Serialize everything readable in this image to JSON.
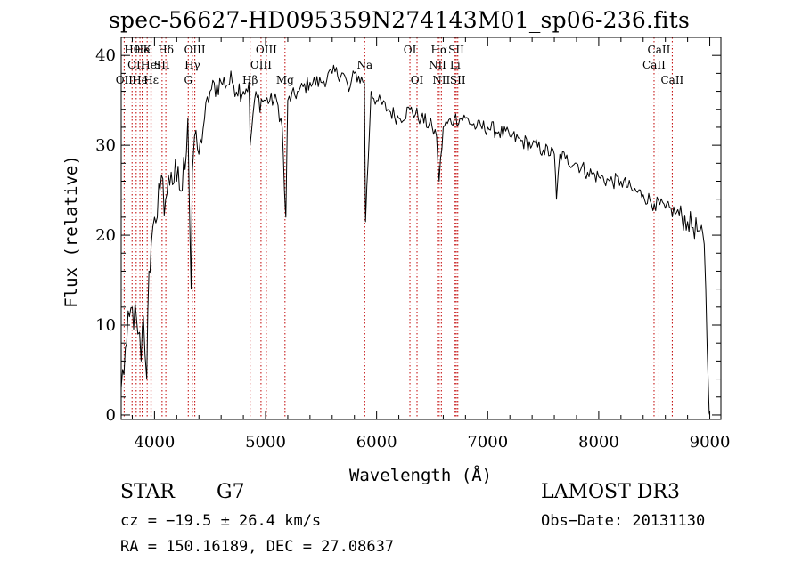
{
  "chart_data": {
    "type": "line",
    "title": "spec-56627-HD095359N274143M01_sp06-236.fits",
    "xlabel": "Wavelength (Å)",
    "ylabel": "Flux (relative)",
    "xlim": [
      3700,
      9100
    ],
    "ylim": [
      -0.5,
      42
    ],
    "xticks": [
      4000,
      5000,
      6000,
      7000,
      8000,
      9000
    ],
    "yticks": [
      0,
      10,
      20,
      30,
      40
    ],
    "series": [
      {
        "name": "flux",
        "x": [
          3700,
          3750,
          3800,
          3850,
          3880,
          3900,
          3930,
          3950,
          3970,
          4000,
          4050,
          4100,
          4150,
          4200,
          4250,
          4300,
          4330,
          4340,
          4360,
          4400,
          4450,
          4500,
          4600,
          4700,
          4800,
          4850,
          4861,
          4900,
          5000,
          5100,
          5150,
          5170,
          5183,
          5200,
          5300,
          5400,
          5500,
          5600,
          5700,
          5750,
          5800,
          5890,
          5900,
          5950,
          6000,
          6100,
          6200,
          6300,
          6400,
          6500,
          6540,
          6563,
          6600,
          6700,
          6800,
          6900,
          7000,
          7100,
          7200,
          7300,
          7400,
          7500,
          7600,
          7620,
          7650,
          7700,
          7800,
          7900,
          8000,
          8100,
          8200,
          8300,
          8400,
          8500,
          8600,
          8700,
          8800,
          8900,
          8950,
          8990,
          9000
        ],
        "y": [
          3,
          8,
          12,
          9,
          6,
          11,
          4,
          16,
          19,
          22,
          25,
          24,
          27,
          26,
          25,
          33,
          14,
          27,
          31,
          29,
          33,
          36,
          37,
          37,
          36,
          37,
          30,
          35,
          35,
          35,
          32,
          25,
          22,
          35,
          36,
          37,
          37,
          38,
          38,
          36,
          38,
          37,
          21.5,
          36,
          35,
          34,
          33,
          34,
          33,
          32,
          31,
          26,
          32,
          33,
          33,
          32,
          32,
          31.5,
          31,
          30.5,
          30,
          29.5,
          29,
          24,
          29,
          28.5,
          28,
          27,
          26.5,
          26,
          26,
          25,
          24.5,
          23.5,
          23,
          22.5,
          21.5,
          20.5,
          19,
          2,
          0
        ]
      }
    ],
    "lines": [
      {
        "lambda": 3727,
        "row": 2,
        "label": "OII"
      },
      {
        "lambda": 3798,
        "row": 0,
        "label": "Hθ"
      },
      {
        "lambda": 3835,
        "row": 1,
        "label": "OII"
      },
      {
        "lambda": 3869,
        "row": 2,
        "label": "He"
      },
      {
        "lambda": 3889,
        "row": 0,
        "label": "He"
      },
      {
        "lambda": 3934,
        "row": 0,
        "label": "K"
      },
      {
        "lambda": 3968,
        "row": 1,
        "label": "HeI"
      },
      {
        "lambda": 3970,
        "row": 2,
        "label": "Hε"
      },
      {
        "lambda": 4068,
        "row": 1,
        "label": "SII"
      },
      {
        "lambda": 4102,
        "row": 0,
        "label": "Hδ"
      },
      {
        "lambda": 4304,
        "row": 2,
        "label": "G"
      },
      {
        "lambda": 4341,
        "row": 1,
        "label": "Hγ"
      },
      {
        "lambda": 4363,
        "row": 0,
        "label": "OIII"
      },
      {
        "lambda": 4861,
        "row": 2,
        "label": "Hβ"
      },
      {
        "lambda": 4959,
        "row": 1,
        "label": "OIII"
      },
      {
        "lambda": 5007,
        "row": 0,
        "label": "OIII"
      },
      {
        "lambda": 5175,
        "row": 2,
        "label": "Mg"
      },
      {
        "lambda": 5893,
        "row": 1,
        "label": "Na"
      },
      {
        "lambda": 6300,
        "row": 0,
        "label": "OI"
      },
      {
        "lambda": 6364,
        "row": 2,
        "label": "OI"
      },
      {
        "lambda": 6548,
        "row": 1,
        "label": "NII"
      },
      {
        "lambda": 6563,
        "row": 0,
        "label": "Hα"
      },
      {
        "lambda": 6583,
        "row": 2,
        "label": "NII"
      },
      {
        "lambda": 6707,
        "row": 1,
        "label": "Li"
      },
      {
        "lambda": 6717,
        "row": 0,
        "label": "SII"
      },
      {
        "lambda": 6731,
        "row": 2,
        "label": "SII"
      },
      {
        "lambda": 8498,
        "row": 1,
        "label": "CaII"
      },
      {
        "lambda": 8542,
        "row": 0,
        "label": "CaII"
      },
      {
        "lambda": 8662,
        "row": 2,
        "label": "CaII"
      }
    ]
  },
  "info": {
    "obj_class": "STAR",
    "obj_subclass": "G7",
    "survey": "LAMOST DR3",
    "cz": "cz = −19.5 ± 26.4 km/s",
    "obs_date": "Obs−Date: 20131130",
    "radec": "RA = 150.16189, DEC =  27.08637"
  }
}
